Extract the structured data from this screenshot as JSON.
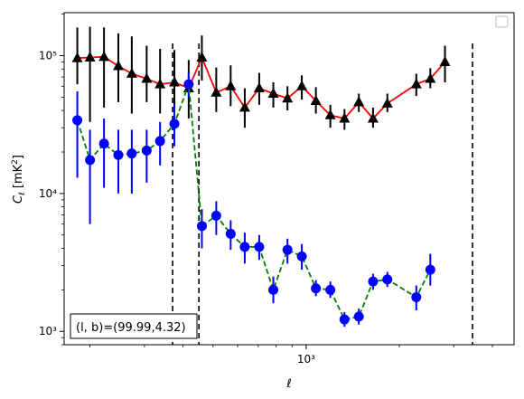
{
  "chart_data": {
    "type": "scatter",
    "xlabel": "ℓ",
    "ylabel": "C_ℓ  [mK²]",
    "xscale": "log",
    "yscale": "log",
    "xlim": [
      165,
      4700
    ],
    "ylim": [
      800,
      205000
    ],
    "x_ticks": [
      {
        "value": 1000,
        "label": "10³"
      }
    ],
    "y_ticks": [
      {
        "value": 1000,
        "label": "10³"
      },
      {
        "value": 10000,
        "label": "10⁴"
      },
      {
        "value": 100000,
        "label": "10⁵"
      }
    ],
    "annotation": "(l, b)=(99.99,4.32)",
    "legend": {
      "placement": "top-right",
      "entries": []
    },
    "vertical_lines": [
      {
        "x": 370,
        "style": "dashed",
        "color": "#000000"
      },
      {
        "x": 450,
        "style": "dashed",
        "color": "#000000"
      },
      {
        "x": 3450,
        "style": "dashed",
        "color": "#000000"
      }
    ],
    "series": [
      {
        "marker": "triangle",
        "line_color": "#ff0000",
        "line_style": "solid",
        "marker_color": "#000000",
        "points": [
          {
            "x": 182,
            "y": 96000,
            "lo": 62000,
            "hi": 160000
          },
          {
            "x": 200,
            "y": 97000,
            "lo": 33000,
            "hi": 162000
          },
          {
            "x": 222,
            "y": 98000,
            "lo": 42000,
            "hi": 160000
          },
          {
            "x": 247,
            "y": 84000,
            "lo": 46000,
            "hi": 145000
          },
          {
            "x": 273,
            "y": 74000,
            "lo": 38000,
            "hi": 138000
          },
          {
            "x": 305,
            "y": 68000,
            "lo": 46000,
            "hi": 118000
          },
          {
            "x": 337,
            "y": 62000,
            "lo": 38000,
            "hi": 112000
          },
          {
            "x": 375,
            "y": 64000,
            "lo": 42000,
            "hi": 110000
          },
          {
            "x": 417,
            "y": 58000,
            "lo": 35000,
            "hi": 93000
          },
          {
            "x": 460,
            "y": 97000,
            "lo": 66000,
            "hi": 140000
          },
          {
            "x": 512,
            "y": 54000,
            "lo": 39000,
            "hi": 82000
          },
          {
            "x": 570,
            "y": 60000,
            "lo": 43000,
            "hi": 85000
          },
          {
            "x": 633,
            "y": 42000,
            "lo": 30000,
            "hi": 58000
          },
          {
            "x": 705,
            "y": 58000,
            "lo": 44000,
            "hi": 75000
          },
          {
            "x": 783,
            "y": 53000,
            "lo": 42000,
            "hi": 64000
          },
          {
            "x": 870,
            "y": 49000,
            "lo": 40000,
            "hi": 60000
          },
          {
            "x": 968,
            "y": 60000,
            "lo": 48000,
            "hi": 72000
          },
          {
            "x": 1075,
            "y": 47000,
            "lo": 38000,
            "hi": 59000
          },
          {
            "x": 1197,
            "y": 37000,
            "lo": 30000,
            "hi": 44000
          },
          {
            "x": 1330,
            "y": 35000,
            "lo": 29000,
            "hi": 41000
          },
          {
            "x": 1480,
            "y": 46000,
            "lo": 39000,
            "hi": 53000
          },
          {
            "x": 1645,
            "y": 35000,
            "lo": 30000,
            "hi": 42000
          },
          {
            "x": 1830,
            "y": 45000,
            "lo": 39000,
            "hi": 53000
          },
          {
            "x": 2270,
            "y": 62000,
            "lo": 51000,
            "hi": 74000
          },
          {
            "x": 2520,
            "y": 68000,
            "lo": 58000,
            "hi": 81000
          },
          {
            "x": 2810,
            "y": 90000,
            "lo": 64000,
            "hi": 118000
          }
        ]
      },
      {
        "marker": "circle",
        "line_color": "#008000",
        "line_style": "dashed",
        "marker_color": "#0000ff",
        "points": [
          {
            "x": 182,
            "y": 34000,
            "lo": 13000,
            "hi": 55000
          },
          {
            "x": 200,
            "y": 17500,
            "lo": 6000,
            "hi": 29000
          },
          {
            "x": 222,
            "y": 23000,
            "lo": 11000,
            "hi": 35000
          },
          {
            "x": 247,
            "y": 19000,
            "lo": 10000,
            "hi": 29000
          },
          {
            "x": 273,
            "y": 19500,
            "lo": 10000,
            "hi": 29000
          },
          {
            "x": 305,
            "y": 20500,
            "lo": 12000,
            "hi": 29000
          },
          {
            "x": 337,
            "y": 24000,
            "lo": 16000,
            "hi": 33000
          },
          {
            "x": 375,
            "y": 32000,
            "lo": 22000,
            "hi": 44000
          },
          {
            "x": 417,
            "y": 62000,
            "lo": 50000,
            "hi": 75000
          },
          {
            "x": 460,
            "y": 5800,
            "lo": 4000,
            "hi": 7700
          },
          {
            "x": 512,
            "y": 6900,
            "lo": 5000,
            "hi": 8800
          },
          {
            "x": 570,
            "y": 5100,
            "lo": 3900,
            "hi": 6400
          },
          {
            "x": 633,
            "y": 4100,
            "lo": 3100,
            "hi": 5200
          },
          {
            "x": 705,
            "y": 4100,
            "lo": 3300,
            "hi": 5000
          },
          {
            "x": 783,
            "y": 2000,
            "lo": 1600,
            "hi": 2500
          },
          {
            "x": 870,
            "y": 3900,
            "lo": 3100,
            "hi": 4700
          },
          {
            "x": 968,
            "y": 3500,
            "lo": 2800,
            "hi": 4300
          },
          {
            "x": 1075,
            "y": 2050,
            "lo": 1800,
            "hi": 2350
          },
          {
            "x": 1197,
            "y": 2000,
            "lo": 1750,
            "hi": 2300
          },
          {
            "x": 1330,
            "y": 1220,
            "lo": 1080,
            "hi": 1380
          },
          {
            "x": 1480,
            "y": 1280,
            "lo": 1120,
            "hi": 1460
          },
          {
            "x": 1645,
            "y": 2300,
            "lo": 2000,
            "hi": 2620
          },
          {
            "x": 1830,
            "y": 2380,
            "lo": 2100,
            "hi": 2700
          },
          {
            "x": 2270,
            "y": 1770,
            "lo": 1420,
            "hi": 2150
          },
          {
            "x": 2520,
            "y": 2800,
            "lo": 2150,
            "hi": 3650
          }
        ]
      }
    ]
  }
}
